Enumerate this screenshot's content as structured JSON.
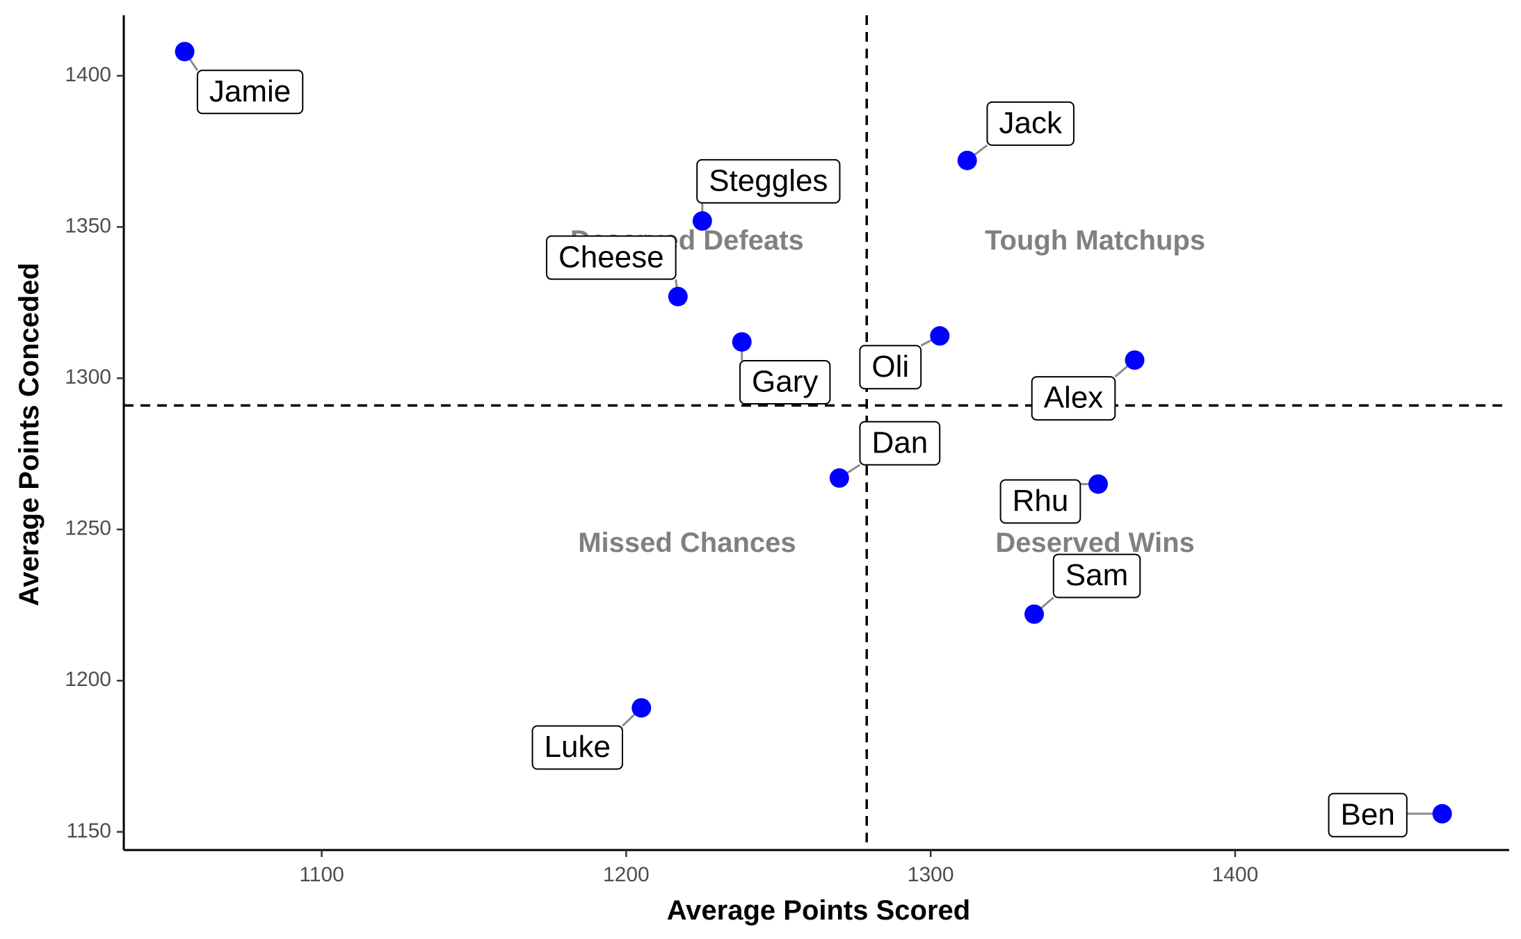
{
  "chart_data": {
    "type": "scatter",
    "title": "",
    "xlabel": "Average Points Scored",
    "ylabel": "Average Points Conceded",
    "xlim": [
      1035,
      1490
    ],
    "ylim": [
      1144,
      1420
    ],
    "x_ticks": [
      1100,
      1200,
      1300,
      1400
    ],
    "x_tick_labels": [
      "1100",
      "1200",
      "1300",
      "1400"
    ],
    "y_ticks": [
      1150,
      1200,
      1250,
      1300,
      1350,
      1400
    ],
    "y_tick_labels": [
      "1150",
      "1200",
      "1250",
      "1300",
      "1350",
      "1400"
    ],
    "grid": false,
    "legend": "none",
    "point_color": "#0000ff",
    "reference_lines": {
      "x": 1279,
      "y": 1291,
      "style": "dashed"
    },
    "quadrant_labels": [
      {
        "text": "Deserved Defeats",
        "x": 1220,
        "y": 1345
      },
      {
        "text": "Tough Matchups",
        "x": 1354,
        "y": 1345
      },
      {
        "text": "Missed Chances",
        "x": 1220,
        "y": 1245
      },
      {
        "text": "Deserved Wins",
        "x": 1354,
        "y": 1245
      }
    ],
    "points": [
      {
        "name": "Jamie",
        "x": 1055,
        "y": 1408
      },
      {
        "name": "Jack",
        "x": 1312,
        "y": 1372
      },
      {
        "name": "Steggles",
        "x": 1225,
        "y": 1352
      },
      {
        "name": "Cheese",
        "x": 1217,
        "y": 1327
      },
      {
        "name": "Gary",
        "x": 1238,
        "y": 1312
      },
      {
        "name": "Oli",
        "x": 1303,
        "y": 1314
      },
      {
        "name": "Alex",
        "x": 1367,
        "y": 1306
      },
      {
        "name": "Dan",
        "x": 1270,
        "y": 1267
      },
      {
        "name": "Rhu",
        "x": 1355,
        "y": 1265
      },
      {
        "name": "Sam",
        "x": 1334,
        "y": 1222
      },
      {
        "name": "Luke",
        "x": 1205,
        "y": 1191
      },
      {
        "name": "Ben",
        "x": 1468,
        "y": 1156
      }
    ]
  }
}
